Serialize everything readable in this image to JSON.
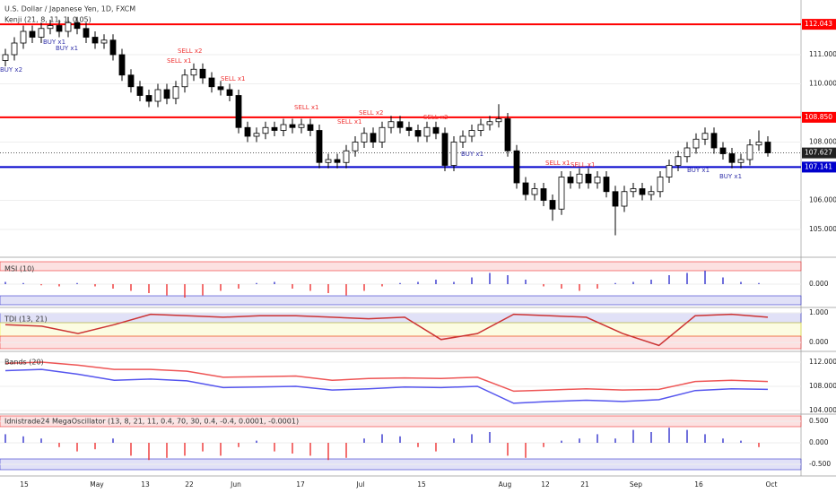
{
  "chart_data": {
    "type": "candlestick",
    "title": "U.S. Dollar / Japanese Yen, 1D, FXCM",
    "subtitle": "Kenji (21, 8, 11, 1, 0.05)",
    "open": [
      110.8,
      111.0,
      111.4,
      111.8,
      111.6,
      111.9,
      112.0,
      111.8,
      112.1,
      111.9,
      111.6,
      111.4,
      111.5,
      111.0,
      110.3,
      109.9,
      109.6,
      109.4,
      109.8,
      109.5,
      109.9,
      110.3,
      110.5,
      110.2,
      109.9,
      109.8,
      109.6,
      108.5,
      108.2,
      108.3,
      108.5,
      108.4,
      108.6,
      108.5,
      108.6,
      108.4,
      107.3,
      107.4,
      107.3,
      107.7,
      108.0,
      108.3,
      108.0,
      108.5,
      108.7,
      108.5,
      108.4,
      108.2,
      108.5,
      108.3,
      107.2,
      108.0,
      108.2,
      108.4,
      108.6,
      108.7,
      108.8,
      107.7,
      106.6,
      106.2,
      106.4,
      106.0,
      105.7,
      106.8,
      106.6,
      106.9,
      106.6,
      106.8,
      106.3,
      105.8,
      106.3,
      106.4,
      106.2,
      106.3,
      106.8,
      107.2,
      107.5,
      107.8,
      108.1,
      108.3,
      107.8,
      107.6,
      107.3,
      107.4,
      107.9,
      108.0
    ],
    "high": [
      111.2,
      111.6,
      112.0,
      112.0,
      112.1,
      112.2,
      112.2,
      112.3,
      112.3,
      112.1,
      111.8,
      111.7,
      111.7,
      111.2,
      110.5,
      110.1,
      109.8,
      110.0,
      110.0,
      110.1,
      110.5,
      110.7,
      110.7,
      110.4,
      110.1,
      110.0,
      109.8,
      108.7,
      108.5,
      108.7,
      108.7,
      108.8,
      108.8,
      108.8,
      108.8,
      108.6,
      107.6,
      107.6,
      107.9,
      108.2,
      108.5,
      108.5,
      108.7,
      108.9,
      108.9,
      108.7,
      108.6,
      108.7,
      108.7,
      108.5,
      108.2,
      108.4,
      108.6,
      108.8,
      108.9,
      109.3,
      109.0,
      107.9,
      106.8,
      106.6,
      106.6,
      106.2,
      107.0,
      107.0,
      107.1,
      107.1,
      107.0,
      107.0,
      106.5,
      106.5,
      106.6,
      106.6,
      106.5,
      107.0,
      107.4,
      107.7,
      108.0,
      108.3,
      108.5,
      108.5,
      108.0,
      107.8,
      107.6,
      108.1,
      108.4,
      108.2
    ],
    "low": [
      110.6,
      110.8,
      111.2,
      111.4,
      111.4,
      111.7,
      111.6,
      111.6,
      111.7,
      111.4,
      111.2,
      111.2,
      110.8,
      110.1,
      109.7,
      109.4,
      109.2,
      109.2,
      109.3,
      109.3,
      109.7,
      110.1,
      110.0,
      109.7,
      109.6,
      109.4,
      108.3,
      108.0,
      108.0,
      108.1,
      108.2,
      108.2,
      108.3,
      108.3,
      108.2,
      107.1,
      107.1,
      107.1,
      107.1,
      107.5,
      107.8,
      107.8,
      107.8,
      108.3,
      108.3,
      108.2,
      108.0,
      108.0,
      108.1,
      107.0,
      107.0,
      107.8,
      108.0,
      108.2,
      108.4,
      108.5,
      107.5,
      106.4,
      106.0,
      106.0,
      105.8,
      105.3,
      105.5,
      106.4,
      106.4,
      106.4,
      106.4,
      106.1,
      104.8,
      105.6,
      106.1,
      106.0,
      106.0,
      106.1,
      106.6,
      107.0,
      107.3,
      107.6,
      107.9,
      107.6,
      107.4,
      107.1,
      107.1,
      107.2,
      107.7,
      107.5
    ],
    "close": [
      111.0,
      111.4,
      111.8,
      111.6,
      111.9,
      112.0,
      111.8,
      112.1,
      111.9,
      111.6,
      111.4,
      111.5,
      111.0,
      110.3,
      109.9,
      109.6,
      109.4,
      109.8,
      109.5,
      109.9,
      110.3,
      110.5,
      110.2,
      109.9,
      109.8,
      109.6,
      108.5,
      108.2,
      108.3,
      108.5,
      108.4,
      108.6,
      108.5,
      108.6,
      108.4,
      107.3,
      107.4,
      107.3,
      107.7,
      108.0,
      108.3,
      108.0,
      108.5,
      108.7,
      108.5,
      108.4,
      108.2,
      108.5,
      108.3,
      107.2,
      108.0,
      108.2,
      108.4,
      108.6,
      108.7,
      108.8,
      107.7,
      106.6,
      106.2,
      106.4,
      106.0,
      105.7,
      106.8,
      106.6,
      106.9,
      106.6,
      106.8,
      106.3,
      105.8,
      106.3,
      106.4,
      106.2,
      106.3,
      106.8,
      107.2,
      107.5,
      107.8,
      108.1,
      108.3,
      107.8,
      107.6,
      107.3,
      107.4,
      107.9,
      108.0,
      107.63
    ],
    "up_color": "#ffffff",
    "down_color": "#000000",
    "ylim": [
      104.108,
      112.877
    ],
    "yticks": [
      {
        "value": 105,
        "label": "105.000"
      },
      {
        "value": 106,
        "label": "106.000"
      },
      {
        "value": 108,
        "label": "108.000"
      },
      {
        "value": 110,
        "label": "110.000"
      },
      {
        "value": 111,
        "label": "111.000"
      }
    ],
    "levels": [
      {
        "value": 112.043,
        "color": "#ff0000"
      },
      {
        "value": 108.85,
        "color": "#ff0000",
        "label": "108.850"
      },
      {
        "value": 107.627,
        "color": "#222222"
      },
      {
        "value": 107.141,
        "color": "#0000cc"
      }
    ],
    "date_labels": [
      "15",
      "May",
      "13",
      "22",
      "Jun",
      "17",
      "Jul",
      "15",
      "Aug",
      "12",
      "21",
      "Sep",
      "16",
      "Oct"
    ],
    "annotations": [
      "BUY x2",
      "BUY x1",
      "BUY x1",
      "SELL x2",
      "SELL x1",
      "SELL x1",
      "SELL x1",
      "SELL x1",
      "SELL x2",
      "SELL x2",
      "BUY x1",
      "SELL x1",
      "SELL x1",
      "BUY x1",
      "BUY x1"
    ],
    "msi": {
      "title": "MSI (10)",
      "ylim": [
        -1,
        1
      ],
      "yticks": [
        {
          "value": 0,
          "label": "0.000"
        }
      ],
      "values": [
        0.1,
        0.05,
        -0.05,
        -0.1,
        0.05,
        -0.1,
        -0.2,
        -0.3,
        -0.4,
        -0.5,
        -0.6,
        -0.5,
        -0.3,
        -0.2,
        0.05,
        0.1,
        -0.2,
        -0.3,
        -0.4,
        -0.5,
        -0.3,
        -0.1,
        0.05,
        0.1,
        0.2,
        0.1,
        0.3,
        0.5,
        0.4,
        0.2,
        -0.1,
        -0.2,
        -0.3,
        -0.2,
        0.05,
        0.1,
        0.2,
        0.4,
        0.5,
        0.6,
        0.3,
        0.1,
        0.05
      ]
    },
    "tdi": {
      "title": "TDI (13, 21)",
      "ylim": [
        -0.27,
        1.12
      ],
      "yticks": [
        {
          "value": 1,
          "label": "1.000"
        },
        {
          "value": 0,
          "label": "0.000"
        }
      ],
      "values": [
        0.6,
        0.55,
        0.3,
        0.6,
        0.95,
        0.9,
        0.85,
        0.9,
        0.9,
        0.85,
        0.8,
        0.85,
        0.1,
        0.3,
        0.95,
        0.9,
        0.85,
        0.3,
        -0.1,
        0.9,
        0.95,
        0.85
      ]
    },
    "bands": {
      "title": "Bands (20)",
      "ylim": [
        103.56,
        113.63
      ],
      "yticks": [
        {
          "value": 112,
          "label": "112.000"
        },
        {
          "value": 108,
          "label": "108.000"
        },
        {
          "value": 104,
          "label": "104.000"
        }
      ],
      "upper": [
        111.8,
        112.0,
        111.5,
        110.8,
        110.8,
        110.5,
        109.5,
        109.6,
        109.7,
        109.0,
        109.3,
        109.4,
        109.3,
        109.5,
        107.2,
        107.4,
        107.6,
        107.4,
        107.5,
        108.8,
        109.0,
        108.8
      ],
      "lower": [
        110.6,
        110.8,
        110.0,
        109.0,
        109.2,
        108.9,
        107.8,
        107.9,
        108.0,
        107.4,
        107.6,
        107.9,
        107.8,
        108.0,
        105.2,
        105.5,
        105.7,
        105.5,
        105.8,
        107.3,
        107.6,
        107.5
      ]
    },
    "mega": {
      "title": "Idnistrade24 MegaOscillator (13, 8, 21, 11, 0.4, 70, 30, 0.4, -0.4, 0.0001, -0.0001)",
      "ylim": [
        -0.75,
        0.646
      ],
      "yticks": [
        {
          "value": 0.5,
          "label": "0.500"
        },
        {
          "value": 0,
          "label": "0.000"
        },
        {
          "value": -0.5,
          "label": "-0.500"
        }
      ],
      "values": [
        0.2,
        0.15,
        0.1,
        -0.1,
        -0.2,
        -0.15,
        0.1,
        -0.3,
        -0.4,
        -0.35,
        -0.3,
        -0.2,
        -0.3,
        -0.1,
        0.05,
        -0.2,
        -0.25,
        -0.3,
        -0.4,
        -0.35,
        0.1,
        0.2,
        0.15,
        -0.1,
        -0.2,
        0.1,
        0.2,
        0.25,
        -0.3,
        -0.35,
        -0.1,
        0.05,
        0.1,
        0.2,
        0.1,
        0.3,
        0.25,
        0.35,
        0.3,
        0.2,
        0.1,
        0.05,
        -0.1
      ]
    }
  }
}
